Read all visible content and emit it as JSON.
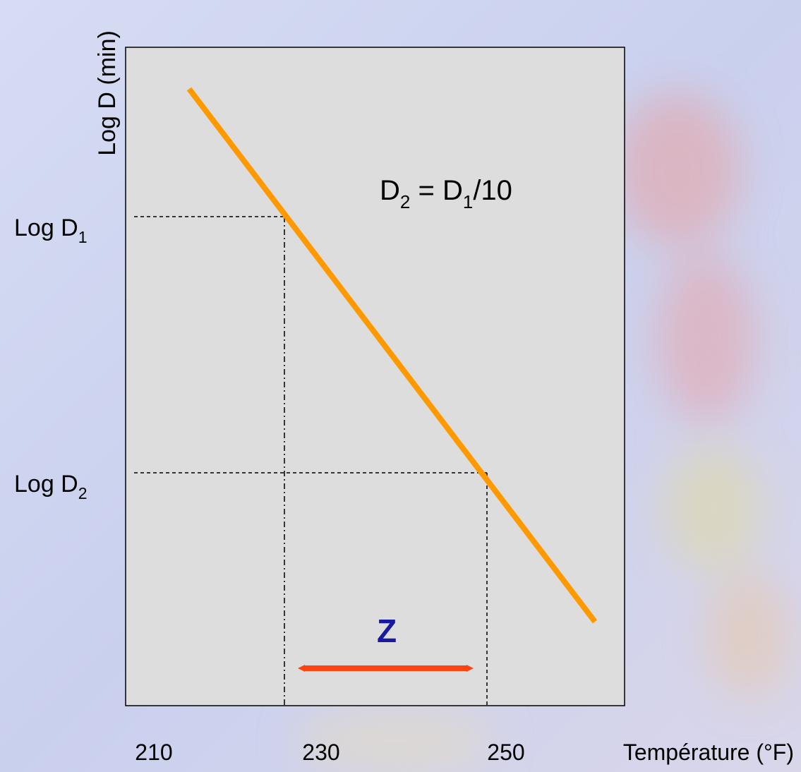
{
  "y_axis_label": "Log D (min)",
  "x_axis_label": "Température (°F)",
  "x_tick_labels": [
    "210",
    "230",
    "250"
  ],
  "y_tick_labels": [
    {
      "text": "Log D",
      "sub": "1"
    },
    {
      "text": "Log D",
      "sub": "2"
    }
  ],
  "equation": {
    "left": "D",
    "left_sub": "2",
    "middle": " = D",
    "right_sub": "1",
    "right": "/10"
  },
  "interval_label": "Z"
}
